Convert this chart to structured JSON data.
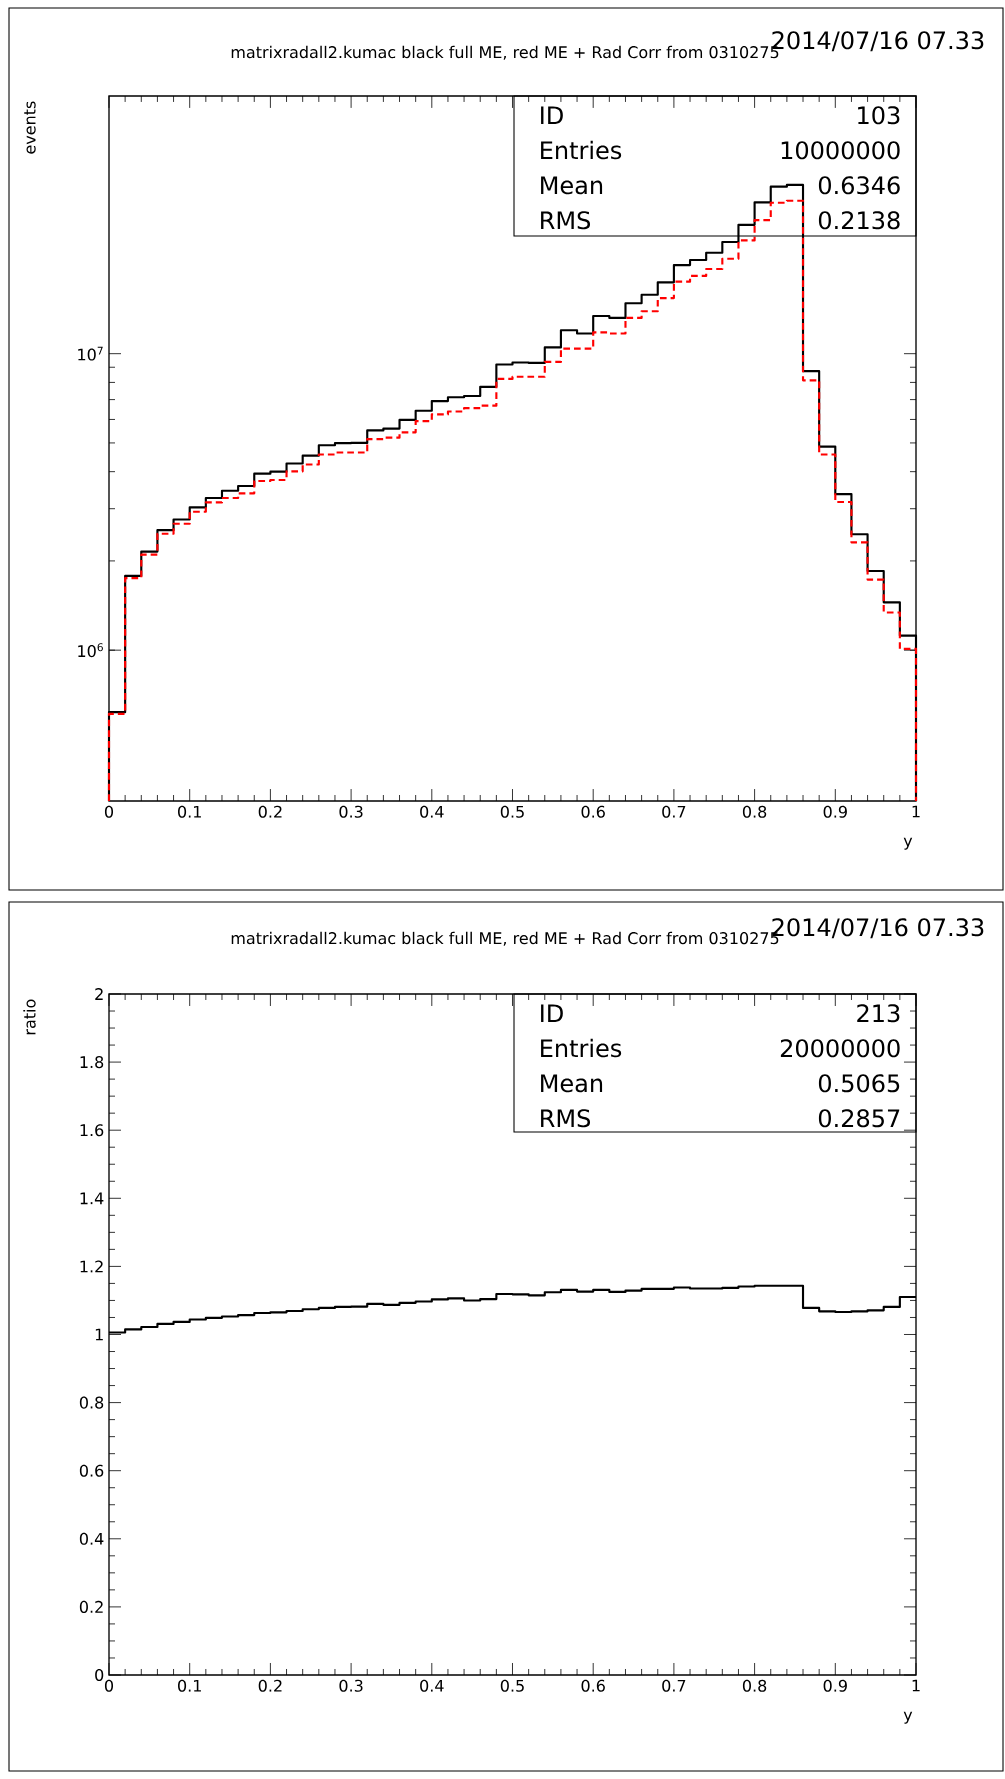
{
  "chart_data": [
    {
      "type": "histogram",
      "title": "matrixradall2.kumac    black full ME, red ME + Rad Corr from 0310275",
      "subtitle": "2014/07/16  07.33",
      "xlabel": "y",
      "ylabel": "events",
      "log": "y",
      "annotations": [
        "ID",
        "103",
        "Entries",
        "10000000",
        "Mean",
        "0.6346",
        "RMS",
        "0.2138"
      ],
      "bins": [
        0,
        0.02,
        0.04,
        0.06,
        0.08,
        0.1,
        0.12,
        0.14,
        0.16,
        0.18,
        0.2,
        0.22,
        0.24,
        0.26,
        0.28,
        0.3,
        0.32,
        0.34,
        0.36,
        0.38,
        0.4,
        0.42,
        0.44,
        0.46,
        0.48,
        0.5,
        0.52,
        0.54,
        0.56,
        0.58,
        0.6,
        0.62,
        0.64,
        0.66,
        0.68,
        0.7,
        0.72,
        0.74,
        0.76,
        0.78,
        0.8,
        0.82,
        0.84,
        0.86,
        0.88,
        0.9,
        0.92,
        0.94,
        0.96,
        0.98,
        1
      ],
      "series": [
        {
          "color": "#000000",
          "line_style": "solid",
          "values": [
            618000,
            1780000,
            2150000,
            2540000,
            2760000,
            3030000,
            3260000,
            3450000,
            3580000,
            3940000,
            4000000,
            4260000,
            4530000,
            4910000,
            4990000,
            5000000,
            5510000,
            5590000,
            5980000,
            6420000,
            6920000,
            7130000,
            7200000,
            7730000,
            9190000,
            9340000,
            9310000,
            10500000,
            12000000,
            11700000,
            13400000,
            13200000,
            14800000,
            15800000,
            17400000,
            19900000,
            20700000,
            21900000,
            23800000,
            27200000,
            32400000,
            36600000,
            37100000,
            8730000,
            4860000,
            3360000,
            2460000,
            1850000,
            1450000,
            1120000
          ]
        },
        {
          "color": "#ff0000",
          "line_style": "dashed",
          "values": [
            610000,
            1750000,
            2100000,
            2470000,
            2670000,
            2930000,
            3150000,
            3260000,
            3380000,
            3720000,
            3750000,
            4010000,
            4230000,
            4570000,
            4640000,
            4640000,
            5150000,
            5210000,
            5430000,
            5920000,
            6240000,
            6380000,
            6550000,
            6680000,
            8220000,
            8360000,
            8360000,
            9380000,
            10400000,
            10400000,
            11800000,
            11700000,
            13200000,
            13900000,
            15400000,
            17500000,
            18300000,
            19300000,
            20900000,
            24100000,
            28200000,
            32300000,
            32800000,
            8130000,
            4570000,
            3160000,
            2310000,
            1730000,
            1340000,
            1010000
          ]
        }
      ],
      "xlim": [
        0,
        1
      ],
      "xticks": [
        0,
        0.1,
        0.2,
        0.3,
        0.4,
        0.5,
        0.6,
        0.7,
        0.8,
        0.9,
        1
      ],
      "ylim": [
        310000,
        74000000
      ],
      "yticks": [
        {
          "value": 1000000,
          "label": "10$^{6}$"
        },
        {
          "value": 10000000,
          "label": "10$^{7}$"
        }
      ]
    },
    {
      "type": "histogram",
      "title": "matrixradall2.kumac    black full ME, red ME + Rad Corr from 0310275",
      "subtitle": "2014/07/16  07.33",
      "xlabel": "y",
      "ylabel": "ratio",
      "annotations": [
        "ID",
        "213",
        "Entries",
        "20000000",
        "Mean",
        "0.5065",
        "RMS",
        "0.2857"
      ],
      "bins": [
        0,
        0.02,
        0.04,
        0.06,
        0.08,
        0.1,
        0.12,
        0.14,
        0.16,
        0.18,
        0.2,
        0.22,
        0.24,
        0.26,
        0.28,
        0.3,
        0.32,
        0.34,
        0.36,
        0.38,
        0.4,
        0.42,
        0.44,
        0.46,
        0.48,
        0.5,
        0.52,
        0.54,
        0.56,
        0.58,
        0.6,
        0.62,
        0.64,
        0.66,
        0.68,
        0.7,
        0.72,
        0.74,
        0.76,
        0.78,
        0.8,
        0.82,
        0.84,
        0.86,
        0.88,
        0.9,
        0.92,
        0.94,
        0.96,
        0.98,
        1
      ],
      "series": [
        {
          "color": "#000000",
          "line_style": "solid",
          "values": [
            1.006,
            1.015,
            1.022,
            1.031,
            1.037,
            1.044,
            1.049,
            1.053,
            1.057,
            1.063,
            1.065,
            1.069,
            1.074,
            1.078,
            1.081,
            1.082,
            1.09,
            1.087,
            1.093,
            1.097,
            1.103,
            1.106,
            1.1,
            1.104,
            1.119,
            1.118,
            1.115,
            1.124,
            1.131,
            1.126,
            1.131,
            1.125,
            1.129,
            1.134,
            1.134,
            1.138,
            1.135,
            1.135,
            1.137,
            1.141,
            1.143,
            1.143,
            1.143,
            1.078,
            1.068,
            1.066,
            1.068,
            1.071,
            1.081,
            1.11
          ]
        }
      ],
      "xlim": [
        0,
        1
      ],
      "xticks": [
        0,
        0.1,
        0.2,
        0.3,
        0.4,
        0.5,
        0.6,
        0.7,
        0.8,
        0.9,
        1
      ],
      "ylim": [
        0,
        2
      ],
      "yticks": [
        0,
        0.2,
        0.4,
        0.6,
        0.8,
        1,
        1.2,
        1.4,
        1.6,
        1.8,
        2
      ]
    }
  ]
}
